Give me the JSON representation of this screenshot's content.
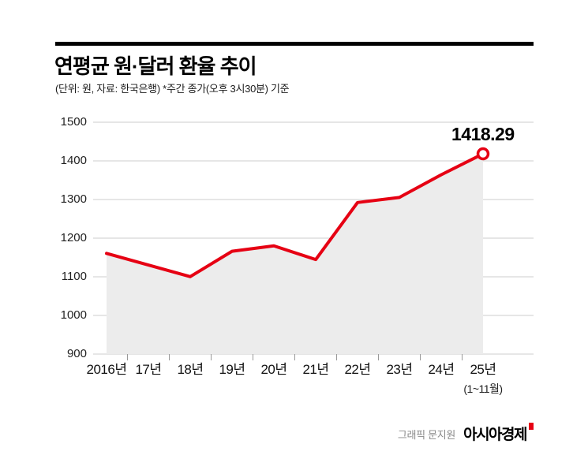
{
  "page": {
    "background": "#ffffff"
  },
  "header": {
    "title": "연평균 원·달러 환율 추이",
    "subtitle": "(단위: 원, 자료: 한국은행)  *주간 종가(오후 3시30분) 기준"
  },
  "chart_data": {
    "type": "line",
    "title": "연평균 원·달러 환율 추이",
    "unit": "원",
    "categories": [
      "2016년",
      "17년",
      "18년",
      "19년",
      "20년",
      "21년",
      "22년",
      "23년",
      "24년",
      "25년"
    ],
    "values": [
      1160.5,
      1130.5,
      1100.3,
      1166.1,
      1180.1,
      1144.6,
      1292.2,
      1305.4,
      1364.0,
      1418.29
    ],
    "ylim": [
      900,
      1500
    ],
    "y_ticks": [
      900,
      1000,
      1100,
      1200,
      1300,
      1400,
      1500
    ],
    "grid": true,
    "legend": "none",
    "end_label": "1418.29",
    "x_sub_label": "(1~11월)",
    "end_marker": "open-circle",
    "line_color": "#e60013",
    "area_color": "#ececec",
    "grid_color": "#cccccc",
    "tick_color": "#999999"
  },
  "footer": {
    "credit": "그래픽 문지원",
    "brand": "아시아경제",
    "brand_accent_color": "#e60013"
  }
}
